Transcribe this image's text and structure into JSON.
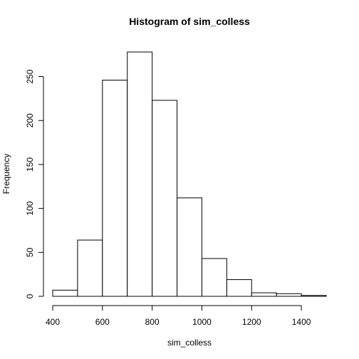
{
  "chart_data": {
    "type": "bar",
    "title": "Histogram of sim_colless",
    "xlabel": "sim_colless",
    "ylabel": "Frequency",
    "bin_edges": [
      400,
      500,
      600,
      700,
      800,
      900,
      1000,
      1100,
      1200,
      1300,
      1400,
      1500
    ],
    "values": [
      7,
      64,
      246,
      278,
      223,
      112,
      43,
      19,
      4,
      3,
      1
    ],
    "xlim": [
      400,
      1500
    ],
    "ylim": [
      0,
      278
    ],
    "x_ticks": [
      400,
      600,
      800,
      1000,
      1200,
      1400
    ],
    "y_ticks": [
      0,
      50,
      100,
      150,
      200,
      250
    ],
    "grid": false,
    "legend": "none"
  }
}
